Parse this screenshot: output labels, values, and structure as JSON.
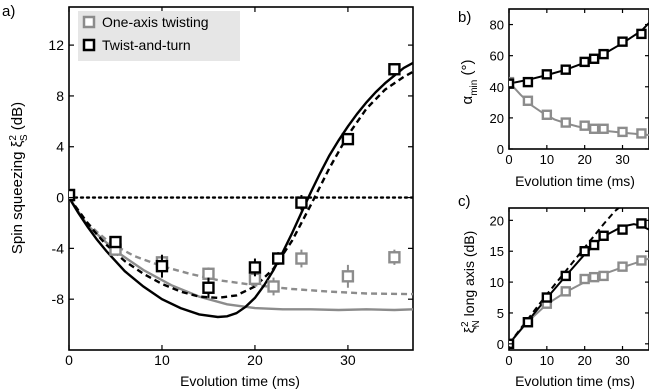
{
  "chart_data": [
    {
      "type": "line",
      "panel_label": "a)",
      "xlabel": "Evolution time (ms)",
      "ylabel_prefix": "Spin squeezing ξ",
      "ylabel_sup": "2",
      "ylabel_sub": "S",
      "ylabel_suffix": " (dB)",
      "xlim": [
        0,
        37
      ],
      "ylim": [
        -12,
        15
      ],
      "xticks": [
        0,
        10,
        20,
        30
      ],
      "yticks": [
        -8,
        -4,
        0,
        4,
        8,
        12
      ],
      "xtick_labels": [
        "0",
        "10",
        "20",
        "30"
      ],
      "ytick_labels": [
        "-8",
        "-4",
        "0",
        "4",
        "8",
        "12"
      ],
      "legend_position": "top-left",
      "legend": [
        {
          "label": "One-axis twisting",
          "color": "#8c8c8c"
        },
        {
          "label": "Twist-and-turn",
          "color": "#000000"
        }
      ],
      "reference_line": {
        "y": 0,
        "style": "dotted"
      },
      "series": [
        {
          "name": "One-axis twisting",
          "color": "#8c8c8c",
          "markers": [
            {
              "x": 0,
              "y": 0.2,
              "err": 0.3
            },
            {
              "x": 5,
              "y": -4.1,
              "err": 0.4
            },
            {
              "x": 10,
              "y": -5.1,
              "err": 0.5
            },
            {
              "x": 15,
              "y": -6.0,
              "err": 0.5
            },
            {
              "x": 20,
              "y": -6.4,
              "err": 0.6
            },
            {
              "x": 22,
              "y": -7.0,
              "err": 0.7
            },
            {
              "x": 25,
              "y": -4.8,
              "err": 0.7
            },
            {
              "x": 30,
              "y": -6.2,
              "err": 0.9
            },
            {
              "x": 35,
              "y": -4.7,
              "err": 0.6
            }
          ],
          "theory_dashed": [
            [
              0,
              0
            ],
            [
              1,
              -1.1
            ],
            [
              2,
              -2.0
            ],
            [
              3,
              -2.7
            ],
            [
              4,
              -3.3
            ],
            [
              5,
              -3.8
            ],
            [
              7,
              -4.6
            ],
            [
              10,
              -5.4
            ],
            [
              13,
              -6.0
            ],
            [
              16,
              -6.5
            ],
            [
              20,
              -6.9
            ],
            [
              24,
              -7.2
            ],
            [
              28,
              -7.4
            ],
            [
              32,
              -7.55
            ],
            [
              37,
              -7.6
            ]
          ],
          "theory_solid": [
            [
              0,
              0
            ],
            [
              2,
              -2.2
            ],
            [
              5,
              -4.2
            ],
            [
              8,
              -5.7
            ],
            [
              11,
              -6.9
            ],
            [
              14,
              -7.8
            ],
            [
              17,
              -8.4
            ],
            [
              20,
              -8.7
            ],
            [
              23,
              -8.8
            ],
            [
              26,
              -8.8
            ],
            [
              29,
              -8.85
            ],
            [
              32,
              -8.8
            ],
            [
              35,
              -8.85
            ],
            [
              37,
              -8.8
            ]
          ]
        },
        {
          "name": "Twist-and-turn",
          "color": "#000000",
          "markers": [
            {
              "x": 0,
              "y": 0.2,
              "err": 0.3
            },
            {
              "x": 5,
              "y": -3.5,
              "err": 0.4
            },
            {
              "x": 10,
              "y": -5.4,
              "err": 0.9
            },
            {
              "x": 15,
              "y": -7.1,
              "err": 0.8
            },
            {
              "x": 20,
              "y": -5.5,
              "err": 0.7
            },
            {
              "x": 22.5,
              "y": -4.8,
              "err": 0.5
            },
            {
              "x": 25,
              "y": -0.4,
              "err": 0.6
            },
            {
              "x": 30,
              "y": 4.6,
              "err": 0.3
            },
            {
              "x": 35,
              "y": 10.1,
              "err": 0.3
            }
          ],
          "theory_dashed": [
            [
              0,
              0
            ],
            [
              1,
              -1.0
            ],
            [
              2,
              -2.0
            ],
            [
              3,
              -2.9
            ],
            [
              4,
              -3.7
            ],
            [
              6,
              -5.0
            ],
            [
              8,
              -6.0
            ],
            [
              10,
              -6.8
            ],
            [
              12,
              -7.4
            ],
            [
              14,
              -7.8
            ],
            [
              16,
              -7.9
            ],
            [
              18,
              -7.7
            ],
            [
              20,
              -7.0
            ],
            [
              22,
              -5.6
            ],
            [
              24,
              -3.4
            ],
            [
              26,
              -0.6
            ],
            [
              28,
              2.3
            ],
            [
              30,
              4.9
            ],
            [
              32,
              7.0
            ],
            [
              34,
              8.5
            ],
            [
              36,
              9.5
            ],
            [
              37,
              9.9
            ]
          ],
          "theory_solid": [
            [
              0,
              0
            ],
            [
              1,
              -1.2
            ],
            [
              2,
              -2.3
            ],
            [
              3,
              -3.3
            ],
            [
              4,
              -4.2
            ],
            [
              6,
              -5.8
            ],
            [
              8,
              -7.0
            ],
            [
              10,
              -8.0
            ],
            [
              12,
              -8.7
            ],
            [
              14,
              -9.2
            ],
            [
              16,
              -9.4
            ],
            [
              17,
              -9.35
            ],
            [
              18,
              -9.1
            ],
            [
              19,
              -8.6
            ],
            [
              20,
              -7.9
            ],
            [
              21,
              -6.9
            ],
            [
              22,
              -5.7
            ],
            [
              23,
              -4.3
            ],
            [
              24,
              -2.8
            ],
            [
              25,
              -1.2
            ],
            [
              26,
              0.4
            ],
            [
              27,
              1.9
            ],
            [
              28,
              3.3
            ],
            [
              29,
              4.5
            ],
            [
              30,
              5.6
            ],
            [
              31,
              6.6
            ],
            [
              32,
              7.5
            ],
            [
              33,
              8.3
            ],
            [
              34,
              9.0
            ],
            [
              35,
              9.6
            ],
            [
              36,
              10.2
            ],
            [
              37,
              10.6
            ]
          ]
        }
      ]
    },
    {
      "type": "line",
      "panel_label": "b)",
      "xlabel": "Evolution time (ms)",
      "ylabel_prefix": "α",
      "ylabel_sub": "min",
      "ylabel_suffix": " (°)",
      "xlim": [
        0,
        37
      ],
      "ylim": [
        0,
        90
      ],
      "xticks": [
        0,
        10,
        20,
        30
      ],
      "yticks": [
        0,
        20,
        40,
        60,
        80
      ],
      "xtick_labels": [
        "0",
        "10",
        "20",
        "30"
      ],
      "ytick_labels": [
        "0",
        "20",
        "40",
        "60",
        "80"
      ],
      "series": [
        {
          "name": "One-axis twisting",
          "color": "#8c8c8c",
          "markers": [
            {
              "x": 0,
              "y": 43
            },
            {
              "x": 5,
              "y": 31
            },
            {
              "x": 10,
              "y": 22
            },
            {
              "x": 15,
              "y": 17
            },
            {
              "x": 20,
              "y": 15
            },
            {
              "x": 22.5,
              "y": 13
            },
            {
              "x": 25,
              "y": 13
            },
            {
              "x": 30,
              "y": 11
            },
            {
              "x": 35,
              "y": 10
            }
          ],
          "theory_solid": [
            [
              0,
              43
            ],
            [
              3,
              35
            ],
            [
              6,
              28
            ],
            [
              9,
              23
            ],
            [
              12,
              19
            ],
            [
              15,
              16.5
            ],
            [
              18,
              14.5
            ],
            [
              21,
              13
            ],
            [
              24,
              12
            ],
            [
              28,
              11
            ],
            [
              32,
              10
            ],
            [
              37,
              9
            ]
          ]
        },
        {
          "name": "Twist-and-turn",
          "color": "#000000",
          "markers": [
            {
              "x": 0,
              "y": 42
            },
            {
              "x": 5,
              "y": 43
            },
            {
              "x": 10,
              "y": 48
            },
            {
              "x": 15,
              "y": 51
            },
            {
              "x": 20,
              "y": 56
            },
            {
              "x": 22.5,
              "y": 58
            },
            {
              "x": 25,
              "y": 61
            },
            {
              "x": 30,
              "y": 69
            },
            {
              "x": 35,
              "y": 74
            }
          ],
          "theory_solid": [
            [
              0,
              42
            ],
            [
              5,
              44.5
            ],
            [
              10,
              47.5
            ],
            [
              15,
              51
            ],
            [
              20,
              55.5
            ],
            [
              25,
              61
            ],
            [
              30,
              68
            ],
            [
              35,
              76
            ],
            [
              37,
              81
            ]
          ]
        }
      ]
    },
    {
      "type": "line",
      "panel_label": "c)",
      "xlabel": "Evolution time (ms)",
      "ylabel_prefix": "ξ",
      "ylabel_sup": "2",
      "ylabel_sub": "N",
      "ylabel_suffix": " long axis (dB)",
      "xlim": [
        0,
        37
      ],
      "ylim": [
        -1,
        22
      ],
      "xticks": [
        0,
        10,
        20,
        30
      ],
      "yticks": [
        0,
        5,
        10,
        15,
        20
      ],
      "xtick_labels": [
        "0",
        "10",
        "20",
        "30"
      ],
      "ytick_labels": [
        "0",
        "5",
        "10",
        "15",
        "20"
      ],
      "series": [
        {
          "name": "One-axis twisting",
          "color": "#8c8c8c",
          "markers": [
            {
              "x": 0,
              "y": 0
            },
            {
              "x": 5,
              "y": 3.5
            },
            {
              "x": 10,
              "y": 6.5
            },
            {
              "x": 15,
              "y": 8.5
            },
            {
              "x": 20,
              "y": 10.5
            },
            {
              "x": 22.5,
              "y": 10.8
            },
            {
              "x": 25,
              "y": 11
            },
            {
              "x": 30,
              "y": 12.5
            },
            {
              "x": 35,
              "y": 13.5
            }
          ],
          "theory_solid": [
            [
              0,
              0
            ],
            [
              5,
              3.6
            ],
            [
              10,
              6.4
            ],
            [
              15,
              8.4
            ],
            [
              20,
              10
            ],
            [
              25,
              11.3
            ],
            [
              30,
              12.4
            ],
            [
              35,
              13.4
            ],
            [
              37,
              13.8
            ]
          ]
        },
        {
          "name": "Twist-and-turn",
          "color": "#000000",
          "markers": [
            {
              "x": 0,
              "y": 0
            },
            {
              "x": 5,
              "y": 3.5
            },
            {
              "x": 10,
              "y": 7.5
            },
            {
              "x": 15,
              "y": 11
            },
            {
              "x": 20,
              "y": 15
            },
            {
              "x": 22.5,
              "y": 16
            },
            {
              "x": 25,
              "y": 17.5
            },
            {
              "x": 30,
              "y": 18.5
            },
            {
              "x": 35,
              "y": 19.5
            }
          ],
          "theory_dashed": [
            [
              0,
              0
            ],
            [
              5,
              4.0
            ],
            [
              10,
              8.0
            ],
            [
              15,
              11.8
            ],
            [
              20,
              15.6
            ],
            [
              25,
              19.4
            ],
            [
              28,
              21.5
            ],
            [
              30,
              22.5
            ]
          ],
          "theory_solid": [
            [
              0,
              0
            ],
            [
              5,
              3.7
            ],
            [
              10,
              7.4
            ],
            [
              15,
              11.0
            ],
            [
              20,
              14.5
            ],
            [
              25,
              17.4
            ],
            [
              30,
              19.0
            ],
            [
              33,
              19.4
            ],
            [
              35,
              19.1
            ],
            [
              37,
              18.5
            ]
          ]
        }
      ]
    }
  ]
}
